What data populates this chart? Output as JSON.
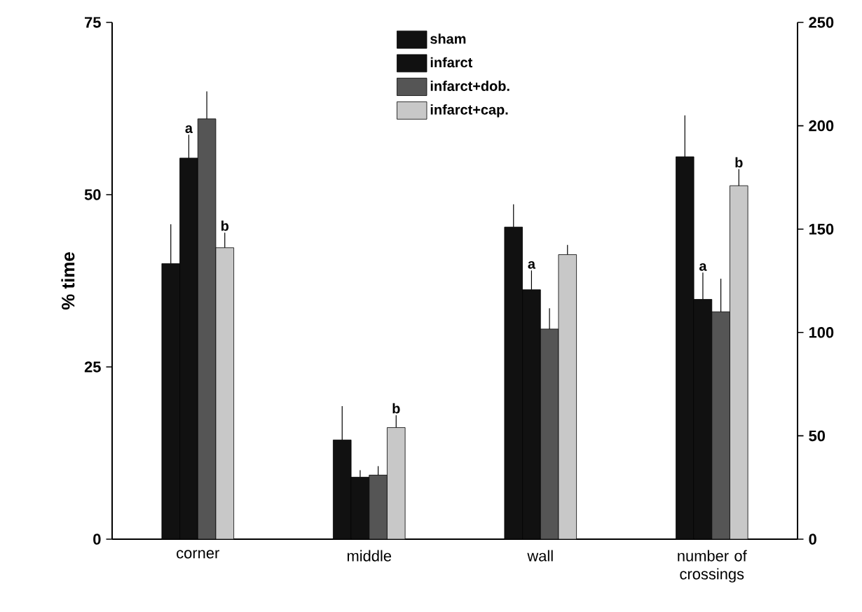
{
  "chart_data": {
    "type": "bar",
    "ylabel": "% time",
    "categories": [
      "corner",
      "middle",
      "wall",
      "number of crossings"
    ],
    "ylim": [
      0,
      75
    ],
    "yticks": [
      0,
      25,
      50,
      75
    ],
    "y2lim": [
      0,
      250
    ],
    "y2ticks": [
      0,
      50,
      100,
      150,
      200,
      250
    ],
    "legend": "top",
    "grid": false,
    "series": [
      {
        "name": "sham",
        "color": "#111111",
        "values": [
          40,
          14.4,
          45.3,
          null
        ],
        "errors": [
          [
            40,
            45.7
          ],
          [
            14.4,
            19.3
          ],
          [
            45.3,
            48.6
          ],
          null
        ]
      },
      {
        "name": "infarct",
        "color": "#111111",
        "values": [
          55.3,
          9,
          36.2,
          null
        ],
        "errors": [
          [
            55.3,
            58.7
          ],
          [
            9,
            10
          ],
          [
            36.2,
            39
          ],
          null
        ],
        "value_labels": [
          "a",
          null,
          "a",
          null
        ]
      },
      {
        "name": "infarct+dob.",
        "color": "#555555",
        "values": [
          61,
          9.3,
          30.5,
          null
        ],
        "errors": [
          [
            61,
            65
          ],
          [
            9.3,
            10.6
          ],
          [
            30.5,
            33.5
          ],
          null
        ]
      },
      {
        "name": "infarct+cap.",
        "color": "#c8c8c8",
        "values": [
          42.3,
          16.2,
          41.3,
          null
        ],
        "errors": [
          [
            42.3,
            44.5
          ],
          [
            16.2,
            18
          ],
          [
            41.3,
            42.7
          ],
          null
        ],
        "value_labels": [
          "b",
          "b",
          null,
          null
        ]
      },
      {
        "color": "#111111",
        "axis": "y2",
        "values": [
          null,
          null,
          null,
          185
        ],
        "errors": [
          null,
          null,
          null,
          [
            185,
            205
          ]
        ]
      },
      {
        "color": "#111111",
        "axis": "y2",
        "values": [
          null,
          null,
          null,
          116
        ],
        "errors": [
          null,
          null,
          null,
          [
            116,
            129
          ]
        ],
        "value_labels": [
          null,
          null,
          null,
          "a"
        ]
      },
      {
        "color": "#555555",
        "axis": "y2",
        "values": [
          null,
          null,
          null,
          110
        ],
        "errors": [
          null,
          null,
          null,
          [
            110,
            126
          ]
        ]
      },
      {
        "color": "#c8c8c8",
        "axis": "y2",
        "values": [
          null,
          null,
          null,
          171
        ],
        "errors": [
          null,
          null,
          null,
          [
            171,
            179
          ]
        ],
        "value_labels": [
          null,
          null,
          null,
          "b"
        ]
      }
    ]
  }
}
